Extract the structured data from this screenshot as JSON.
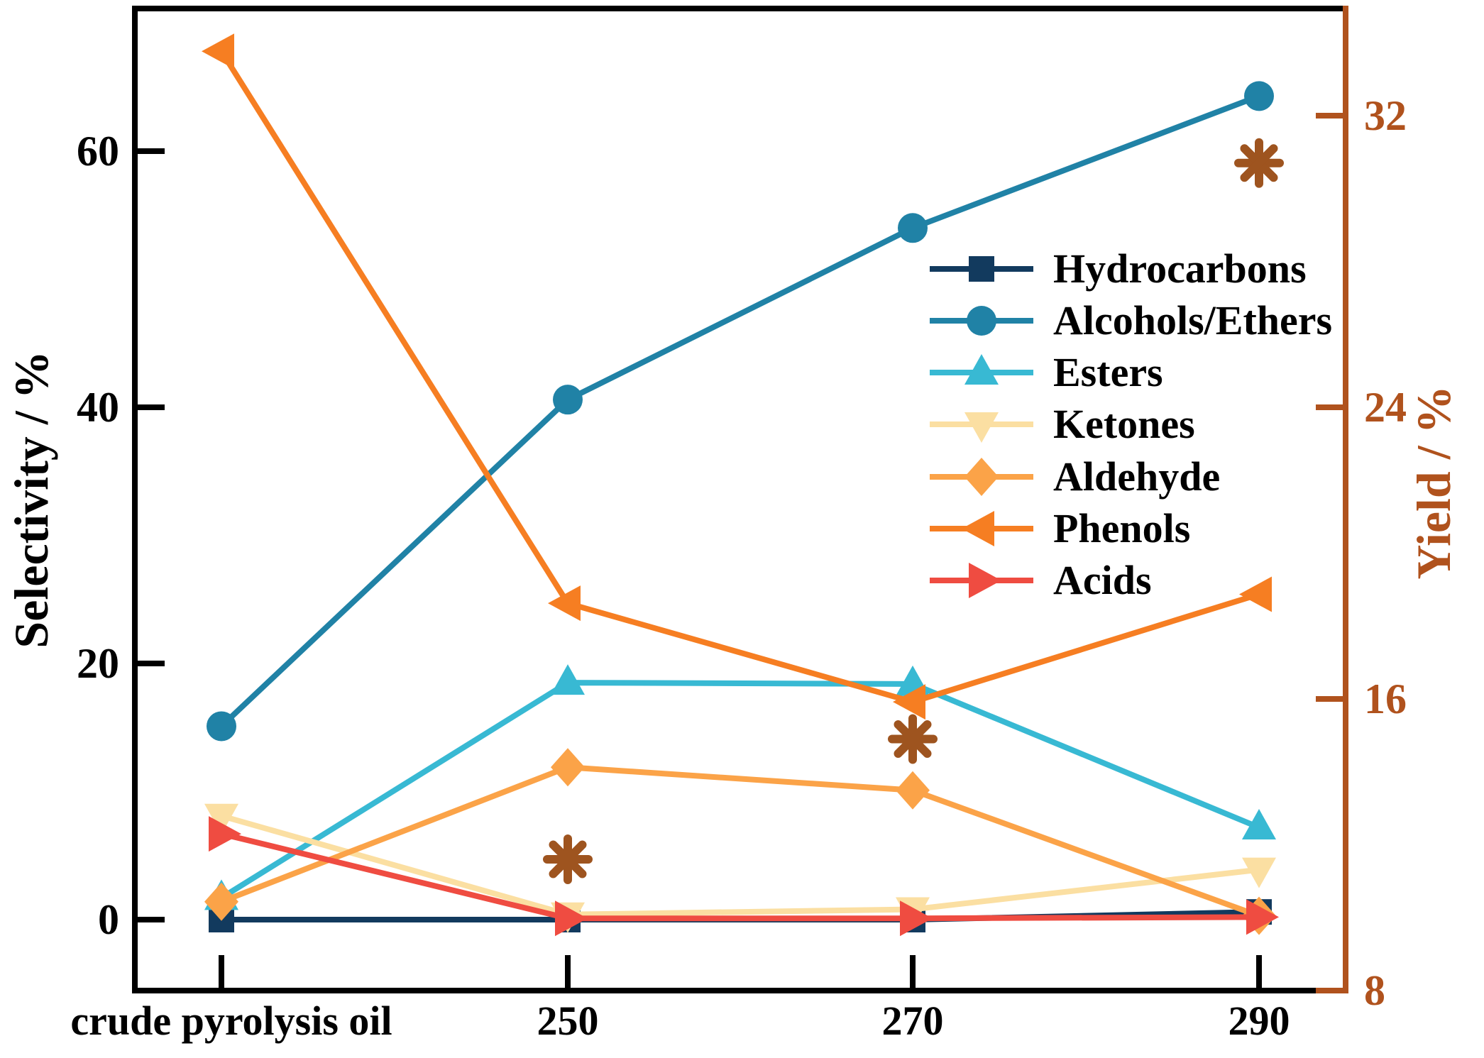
{
  "chart_data": {
    "type": "line",
    "categories": [
      "crude pyrolysis oil",
      "250",
      "270",
      "290"
    ],
    "left_axis": {
      "label": "Selectivity / %",
      "ticks": [
        0,
        20,
        40,
        60
      ],
      "range": [
        -5.5,
        71.1
      ],
      "color": "#000000"
    },
    "right_axis": {
      "label": "Yield / %",
      "ticks": [
        8,
        16,
        24,
        32
      ],
      "range": [
        8,
        34.9
      ],
      "color": "#b0521d"
    },
    "grid": false,
    "legend_position": "upper-middle-right",
    "series": [
      {
        "name": "Hydrocarbons",
        "marker": "square",
        "color": "#123a5e",
        "axis": "left",
        "values": [
          0,
          0,
          0,
          0.6
        ]
      },
      {
        "name": "Alcohols/Ethers",
        "marker": "circle",
        "color": "#2082a6",
        "axis": "left",
        "values": [
          15.1,
          40.6,
          54.0,
          64.3
        ]
      },
      {
        "name": "Esters",
        "marker": "triangle-up",
        "color": "#38b9d3",
        "axis": "left",
        "values": [
          1.7,
          18.5,
          18.4,
          7.2
        ]
      },
      {
        "name": "Ketones",
        "marker": "triangle-down",
        "color": "#fbdfa2",
        "axis": "left",
        "values": [
          8.1,
          0.4,
          0.8,
          3.9
        ]
      },
      {
        "name": "Aldehyde",
        "marker": "diamond",
        "color": "#fba348",
        "axis": "left",
        "values": [
          1.4,
          11.9,
          10.1,
          0.3
        ]
      },
      {
        "name": "Phenols",
        "marker": "triangle-left",
        "color": "#f67e22",
        "axis": "left",
        "values": [
          67.8,
          24.7,
          17.0,
          25.4
        ]
      },
      {
        "name": "Acids",
        "marker": "triangle-right",
        "color": "#ef4c41",
        "axis": "left",
        "values": [
          6.7,
          0.1,
          0.1,
          0.2
        ]
      }
    ],
    "yield_series": {
      "name": "Yield",
      "marker": "eight-spoked-asterisk",
      "symbol": "✳",
      "color": "#9e541f",
      "axis": "right",
      "points": [
        {
          "category": "250",
          "value": 11.6
        },
        {
          "category": "270",
          "value": 14.9
        },
        {
          "category": "290",
          "value": 30.7
        }
      ]
    }
  }
}
